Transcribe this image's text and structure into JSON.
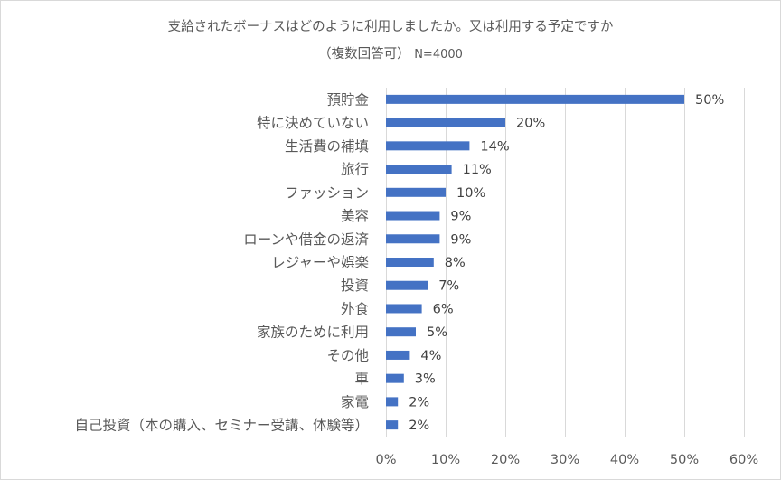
{
  "chart_data": {
    "type": "bar",
    "orientation": "horizontal",
    "title": "支給されたボーナスはどのように利用しましたか。又は利用する予定ですか",
    "subtitle_note": "（複数回答可）",
    "subtitle_n": "N=4000",
    "categories": [
      "預貯金",
      "特に決めていない",
      "生活費の補填",
      "旅行",
      "ファッション",
      "美容",
      "ローンや借金の返済",
      "レジャーや娯楽",
      "投資",
      "外食",
      "家族のために利用",
      "その他",
      "車",
      "家電",
      "自己投資（本の購入、セミナー受講、体験等）"
    ],
    "values": [
      50,
      20,
      14,
      11,
      10,
      9,
      9,
      8,
      7,
      6,
      5,
      4,
      3,
      2,
      2
    ],
    "data_labels": [
      "50%",
      "20%",
      "14%",
      "11%",
      "10%",
      "9%",
      "9%",
      "8%",
      "7%",
      "6%",
      "5%",
      "4%",
      "3%",
      "2%",
      "2%"
    ],
    "xlim": [
      0,
      60
    ],
    "x_ticks": [
      0,
      10,
      20,
      30,
      40,
      50,
      60
    ],
    "x_tick_labels": [
      "0%",
      "10%",
      "20%",
      "30%",
      "40%",
      "50%",
      "60%"
    ],
    "grid": true,
    "bar_color": "#4472C4",
    "xlabel": "",
    "ylabel": ""
  }
}
